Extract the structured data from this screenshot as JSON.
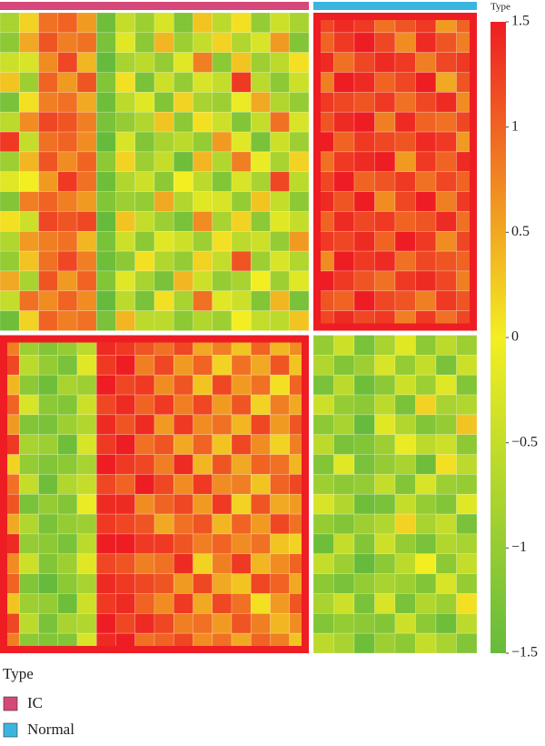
{
  "chart_data": {
    "type": "heatmap",
    "annotation_title": "Type",
    "legend_title": "Type",
    "zlim": [
      -1.5,
      1.5
    ],
    "colorscale": [
      "#66bb3c",
      "#f3ee22",
      "#ee1d23"
    ],
    "colorbar_ticks": [
      1.5,
      1,
      0.5,
      0,
      {
        "value": -0.5,
        "label": "−0.5"
      },
      {
        "value": -1,
        "label": "−1"
      },
      {
        "value": -1.5,
        "label": "−1.5"
      }
    ],
    "highlight_color": "#ee1d23",
    "series": [
      {
        "name": "IC",
        "color": "#d6477a",
        "values": [
          [
            -0.8,
            0.2,
            0.9,
            1.0,
            0.6,
            -1.4,
            -0.5,
            -0.9,
            -0.3,
            -1.2,
            0.3,
            -0.6,
            0.1,
            -1.0,
            -0.4,
            -0.8
          ],
          [
            -1.1,
            0.5,
            1.1,
            0.8,
            0.9,
            -1.3,
            -0.2,
            -1.1,
            0.4,
            -0.9,
            -0.5,
            0.2,
            -0.7,
            -0.3,
            0.6,
            -1.2
          ],
          [
            -0.4,
            -0.3,
            0.7,
            1.2,
            0.4,
            -1.5,
            -0.8,
            -0.6,
            -1.0,
            -0.2,
            0.8,
            -1.1,
            0.3,
            -0.9,
            -0.6,
            0.1
          ],
          [
            0.3,
            -0.9,
            1.0,
            0.6,
            1.1,
            -1.2,
            0.1,
            -1.3,
            -0.4,
            -1.0,
            -0.3,
            -0.5,
            1.3,
            -0.6,
            -1.1,
            -0.4
          ],
          [
            -1.3,
            0.1,
            0.8,
            0.9,
            0.5,
            -1.4,
            -0.6,
            -0.2,
            -1.2,
            0.2,
            -0.8,
            -0.9,
            -0.1,
            0.5,
            -0.7,
            -1.0
          ],
          [
            -0.6,
            0.7,
            1.2,
            1.1,
            0.8,
            -1.3,
            -1.0,
            -0.7,
            0.3,
            -1.1,
            0.1,
            -0.4,
            -1.2,
            -0.5,
            0.9,
            -0.3
          ],
          [
            1.3,
            -0.5,
            0.9,
            1.0,
            0.7,
            -1.5,
            -0.3,
            -1.2,
            -0.8,
            -0.6,
            -1.0,
            0.6,
            -0.2,
            -1.3,
            -0.4,
            -0.9
          ],
          [
            -0.9,
            0.4,
            1.1,
            0.7,
            1.0,
            -1.1,
            0.2,
            -0.9,
            -0.5,
            -1.4,
            0.4,
            -0.7,
            0.8,
            -0.1,
            -0.8,
            0.2
          ],
          [
            -0.2,
            0.0,
            0.6,
            1.3,
            0.9,
            -1.4,
            -0.7,
            -0.4,
            -1.1,
            0.0,
            -0.6,
            -1.2,
            -0.3,
            -0.8,
            1.2,
            -0.6
          ],
          [
            -1.2,
            0.8,
            1.0,
            0.8,
            0.6,
            -1.2,
            -0.9,
            -1.0,
            0.5,
            -0.7,
            -0.2,
            -0.3,
            -1.0,
            0.3,
            -0.5,
            -1.1
          ],
          [
            0.1,
            -0.4,
            1.2,
            1.1,
            1.2,
            -1.5,
            0.3,
            -0.5,
            -0.9,
            -1.3,
            0.7,
            -0.8,
            0.2,
            -1.1,
            -0.2,
            -0.5
          ],
          [
            -0.7,
            0.6,
            0.8,
            0.9,
            0.4,
            -1.3,
            -0.4,
            -1.1,
            -0.2,
            -0.4,
            -0.9,
            0.1,
            -0.6,
            -0.4,
            -1.0,
            0.6
          ],
          [
            -1.0,
            0.3,
            0.9,
            1.2,
            0.8,
            -1.4,
            -1.1,
            0.1,
            -0.7,
            -1.0,
            0.2,
            -0.5,
            1.1,
            -0.9,
            -0.3,
            -0.7
          ],
          [
            0.5,
            -0.8,
            1.1,
            0.6,
            1.0,
            -1.2,
            -0.2,
            -0.8,
            -1.3,
            0.4,
            -0.4,
            -1.0,
            -0.8,
            0.0,
            -0.9,
            -0.2
          ],
          [
            -0.5,
            0.9,
            0.7,
            1.0,
            0.7,
            -1.5,
            -0.6,
            -1.3,
            0.1,
            -0.8,
            0.9,
            -0.2,
            -0.4,
            -1.2,
            0.4,
            -1.3
          ],
          [
            -1.4,
            0.2,
            1.0,
            0.8,
            0.9,
            -1.3,
            0.4,
            -0.6,
            -0.6,
            -1.1,
            -0.7,
            -0.9,
            0.0,
            -0.5,
            -0.6,
            0.3
          ],
          [
            0.8,
            -0.9,
            -1.2,
            -1.0,
            -0.6,
            1.4,
            1.3,
            1.1,
            0.9,
            1.2,
            0.5,
            0.8,
            0.3,
            1.0,
            0.4,
            0.7
          ],
          [
            1.2,
            -0.6,
            -1.0,
            -1.3,
            -0.2,
            1.3,
            1.5,
            0.8,
            1.2,
            0.6,
            1.0,
            0.2,
            0.9,
            0.5,
            1.1,
            0.3
          ],
          [
            0.4,
            -1.1,
            -1.4,
            -0.8,
            -0.9,
            1.5,
            1.2,
            1.3,
            0.7,
            1.1,
            0.3,
            1.2,
            0.6,
            0.9,
            0.1,
            1.0
          ],
          [
            1.0,
            -0.3,
            -1.1,
            -1.2,
            -0.4,
            1.2,
            1.4,
            1.0,
            1.3,
            0.8,
            1.2,
            0.6,
            1.1,
            0.2,
            0.8,
            0.5
          ],
          [
            0.6,
            -1.2,
            -1.3,
            -0.9,
            -0.7,
            1.4,
            1.1,
            1.4,
            0.6,
            1.3,
            0.7,
            0.9,
            0.4,
            1.2,
            0.6,
            1.1
          ],
          [
            1.3,
            -0.8,
            -0.9,
            -1.4,
            -0.3,
            1.3,
            1.5,
            0.9,
            1.1,
            0.5,
            1.0,
            0.3,
            1.2,
            0.7,
            0.2,
            0.8
          ],
          [
            0.2,
            -1.0,
            -1.2,
            -1.1,
            -0.8,
            1.5,
            1.3,
            1.2,
            0.8,
            1.4,
            0.4,
            1.1,
            0.5,
            1.0,
            0.9,
            0.4
          ],
          [
            0.9,
            -0.5,
            -1.4,
            -0.7,
            -0.5,
            1.2,
            1.0,
            1.5,
            1.2,
            0.7,
            1.3,
            0.7,
            0.8,
            0.3,
            1.0,
            1.2
          ],
          [
            1.1,
            -1.3,
            -1.0,
            -1.2,
            -0.1,
            1.4,
            1.4,
            0.7,
            1.0,
            1.2,
            0.6,
            1.3,
            0.2,
            1.1,
            0.5,
            0.6
          ],
          [
            0.5,
            -0.7,
            -1.3,
            -1.0,
            -0.9,
            1.3,
            1.2,
            1.1,
            0.5,
            0.9,
            1.1,
            0.4,
            1.0,
            0.6,
            1.2,
            0.9
          ],
          [
            1.4,
            -1.0,
            -1.1,
            -1.3,
            -0.6,
            1.5,
            1.5,
            1.3,
            1.3,
            1.1,
            0.8,
            1.0,
            0.7,
            0.9,
            0.3,
            0.2
          ],
          [
            0.7,
            -0.4,
            -1.2,
            -0.9,
            -0.2,
            1.2,
            1.1,
            0.8,
            0.9,
            1.4,
            0.2,
            0.8,
            1.3,
            0.4,
            0.7,
            1.0
          ],
          [
            1.0,
            -1.2,
            -1.5,
            -1.1,
            -0.8,
            1.4,
            1.3,
            1.2,
            1.1,
            0.6,
            1.2,
            0.5,
            0.3,
            1.2,
            1.0,
            0.5
          ],
          [
            0.3,
            -0.9,
            -1.0,
            -1.4,
            -0.4,
            1.3,
            1.4,
            1.0,
            0.7,
            1.3,
            0.5,
            1.2,
            0.9,
            0.1,
            0.6,
            1.1
          ],
          [
            1.2,
            -0.6,
            -1.3,
            -0.8,
            -0.7,
            1.5,
            1.2,
            1.4,
            1.2,
            0.8,
            0.9,
            0.6,
            1.1,
            0.8,
            0.4,
            0.7
          ],
          [
            0.8,
            -1.1,
            -1.2,
            -1.2,
            -0.3,
            1.4,
            1.5,
            0.9,
            1.0,
            1.2,
            0.7,
            0.9,
            0.5,
            1.0,
            0.8,
            0.3
          ]
        ]
      },
      {
        "name": "Normal",
        "color": "#3bb5e0",
        "values": [
          [
            1.2,
            1.4,
            1.3,
            0.9,
            1.1,
            1.3,
            0.6,
            1.0
          ],
          [
            1.0,
            1.3,
            1.5,
            1.2,
            0.7,
            1.4,
            1.1,
            0.8
          ],
          [
            1.4,
            0.9,
            1.2,
            1.4,
            1.3,
            0.8,
            1.2,
            1.3
          ],
          [
            0.8,
            1.5,
            1.4,
            1.0,
            1.2,
            1.5,
            0.5,
            1.1
          ],
          [
            1.3,
            1.2,
            1.1,
            1.3,
            0.9,
            1.2,
            1.4,
            0.7
          ],
          [
            1.1,
            1.4,
            1.5,
            0.8,
            1.4,
            1.0,
            0.9,
            1.2
          ],
          [
            1.5,
            1.0,
            1.3,
            1.2,
            1.1,
            1.4,
            1.3,
            0.6
          ],
          [
            0.9,
            1.3,
            1.4,
            1.5,
            0.6,
            1.3,
            1.0,
            1.4
          ],
          [
            1.2,
            1.5,
            1.0,
            1.1,
            1.3,
            0.9,
            1.2,
            1.0
          ],
          [
            1.4,
            1.1,
            1.5,
            0.7,
            1.2,
            1.5,
            0.8,
            1.3
          ],
          [
            1.0,
            1.4,
            1.2,
            1.3,
            1.0,
            1.1,
            1.4,
            0.9
          ],
          [
            1.3,
            1.2,
            1.4,
            1.0,
            1.5,
            1.3,
            0.7,
            1.2
          ],
          [
            0.7,
            1.5,
            1.3,
            1.4,
            0.9,
            1.2,
            1.1,
            1.0
          ],
          [
            1.5,
            1.3,
            1.1,
            0.9,
            1.3,
            1.4,
            1.2,
            0.8
          ],
          [
            1.1,
            1.0,
            1.5,
            1.2,
            1.1,
            0.8,
            1.3,
            1.1
          ],
          [
            1.2,
            1.4,
            1.2,
            1.3,
            0.8,
            1.3,
            0.9,
            1.2
          ],
          [
            -1.0,
            -0.4,
            -1.3,
            -0.8,
            -0.2,
            -1.1,
            -0.6,
            -0.9
          ],
          [
            -0.7,
            -1.2,
            -0.9,
            -0.3,
            -1.0,
            -0.5,
            -1.3,
            -0.4
          ],
          [
            -1.3,
            -0.6,
            -1.4,
            -1.1,
            -0.4,
            -0.9,
            -0.2,
            -1.2
          ],
          [
            -0.4,
            -1.0,
            -1.1,
            -0.6,
            -1.3,
            0.2,
            -0.8,
            -0.7
          ],
          [
            -1.1,
            -0.8,
            -1.5,
            -0.2,
            -0.7,
            -1.2,
            -1.0,
            0.3
          ],
          [
            -0.6,
            -1.3,
            -1.2,
            -0.9,
            -0.1,
            -0.6,
            -0.4,
            -1.1
          ],
          [
            -1.2,
            -0.2,
            -1.3,
            -1.0,
            -0.8,
            -1.4,
            0.1,
            -0.6
          ],
          [
            -0.9,
            -1.1,
            -1.0,
            -0.5,
            -1.2,
            -0.3,
            -0.9,
            -1.0
          ],
          [
            -0.3,
            -0.7,
            -1.4,
            -1.3,
            -0.5,
            -1.0,
            -1.2,
            -0.2
          ],
          [
            -1.0,
            -1.2,
            -0.9,
            -0.7,
            0.2,
            -0.8,
            -0.5,
            -1.3
          ],
          [
            -1.4,
            -0.5,
            -1.2,
            -0.4,
            -1.0,
            -1.3,
            -0.7,
            -0.8
          ],
          [
            -0.5,
            -0.9,
            -1.5,
            -1.1,
            -0.6,
            0.0,
            -1.1,
            -0.5
          ],
          [
            -1.1,
            -1.3,
            -1.0,
            -0.8,
            -0.9,
            -1.2,
            -0.3,
            -1.0
          ],
          [
            -0.8,
            -0.4,
            -1.3,
            -0.3,
            -1.3,
            -0.7,
            -0.9,
            0.1
          ],
          [
            -1.2,
            -1.0,
            -1.1,
            -1.2,
            -0.4,
            -1.1,
            -1.4,
            -0.6
          ],
          [
            -0.6,
            -0.8,
            -1.4,
            -0.9,
            -1.1,
            -0.5,
            -0.8,
            -1.2
          ]
        ]
      }
    ]
  }
}
